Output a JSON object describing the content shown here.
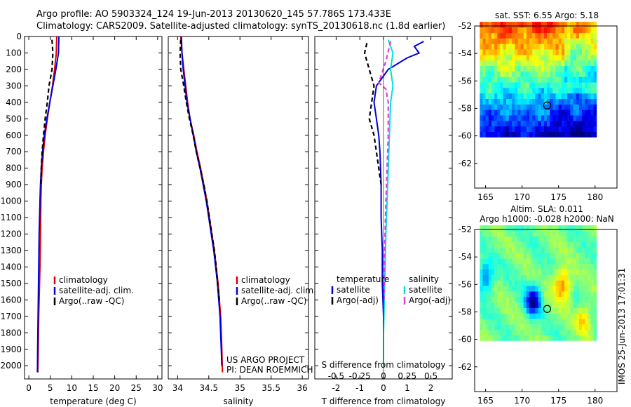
{
  "title_line1": "Argo profile: AO 5903324_124 19-Jun-2013 20130620_145 57.786S 173.433E",
  "title_line2": "Climatology: CARS2009. Satellite-adjusted climatology: synTS_20130618.nc (1.8d earlier)",
  "side_stamp": "IMOS 25-Jun-2013 17:01:31",
  "project_line1": "US ARGO PROJECT",
  "project_line2": "PI: DEAN ROEMMICH",
  "colors": {
    "climatology": "#dd0000",
    "satellite": "#0000dd",
    "argo": "#000000",
    "salinity_satellite": "#00e0e0",
    "salinity_argo": "#e040e0"
  },
  "chart_data": [
    {
      "type": "line",
      "id": "temperature-profile",
      "xlabel": "temperature (deg C)",
      "xlim": [
        -1,
        31
      ],
      "xticks": [
        0,
        5,
        10,
        15,
        20,
        25,
        30
      ],
      "ylim": [
        2080,
        0
      ],
      "yticks": [
        0,
        100,
        200,
        300,
        400,
        500,
        600,
        700,
        800,
        900,
        1000,
        1100,
        1200,
        1300,
        1400,
        1500,
        1600,
        1700,
        1800,
        1900,
        2000
      ],
      "legend": [
        "climatology",
        "satellite-adj. clim.",
        "Argo(..raw -QC)"
      ],
      "legend_position": "lower-middle",
      "series": [
        {
          "name": "climatology",
          "color": "#dd0000",
          "dash": false,
          "points": [
            [
              6.5,
              0
            ],
            [
              6.4,
              100
            ],
            [
              6.0,
              200
            ],
            [
              5.5,
              300
            ],
            [
              4.9,
              400
            ],
            [
              4.3,
              500
            ],
            [
              3.8,
              600
            ],
            [
              3.4,
              700
            ],
            [
              3.1,
              800
            ],
            [
              2.9,
              900
            ],
            [
              2.8,
              1000
            ],
            [
              2.75,
              1100
            ],
            [
              2.7,
              1200
            ],
            [
              2.65,
              1300
            ],
            [
              2.6,
              1400
            ],
            [
              2.5,
              1500
            ],
            [
              2.4,
              1600
            ],
            [
              2.3,
              1700
            ],
            [
              2.25,
              1800
            ],
            [
              2.2,
              1900
            ],
            [
              2.1,
              2040
            ]
          ]
        },
        {
          "name": "satellite-adj. clim.",
          "color": "#0000dd",
          "dash": false,
          "points": [
            [
              7.0,
              0
            ],
            [
              6.9,
              100
            ],
            [
              6.3,
              200
            ],
            [
              5.6,
              300
            ],
            [
              4.9,
              400
            ],
            [
              4.2,
              500
            ],
            [
              3.6,
              600
            ],
            [
              3.2,
              700
            ],
            [
              2.9,
              800
            ],
            [
              2.7,
              900
            ],
            [
              2.6,
              1000
            ],
            [
              2.5,
              1100
            ],
            [
              2.4,
              1200
            ],
            [
              2.35,
              1300
            ],
            [
              2.3,
              1400
            ],
            [
              2.25,
              1500
            ],
            [
              2.2,
              1600
            ],
            [
              2.15,
              1700
            ],
            [
              2.1,
              1800
            ],
            [
              2.05,
              1900
            ],
            [
              2.0,
              2040
            ]
          ]
        },
        {
          "name": "Argo(..raw -QC)",
          "color": "#000000",
          "dash": true,
          "points": [
            [
              5.4,
              20
            ],
            [
              5.6,
              100
            ],
            [
              5.4,
              200
            ],
            [
              4.7,
              300
            ],
            [
              4.3,
              400
            ],
            [
              3.8,
              500
            ],
            [
              3.4,
              600
            ],
            [
              3.1,
              700
            ],
            [
              2.9,
              800
            ],
            [
              2.8,
              900
            ]
          ]
        }
      ]
    },
    {
      "type": "line",
      "id": "salinity-profile",
      "xlabel": "salinity",
      "xlim": [
        33.85,
        36.1
      ],
      "xticks": [
        34,
        34.5,
        35,
        35.5,
        36
      ],
      "ylim": [
        2080,
        0
      ],
      "legend": [
        "climatology",
        "satellite-adj. clim.",
        "Argo(..raw -QC)"
      ],
      "legend_position": "lower-middle",
      "series": [
        {
          "name": "climatology",
          "color": "#dd0000",
          "dash": false,
          "points": [
            [
              34.05,
              0
            ],
            [
              34.07,
              100
            ],
            [
              34.1,
              200
            ],
            [
              34.13,
              300
            ],
            [
              34.16,
              400
            ],
            [
              34.2,
              500
            ],
            [
              34.26,
              600
            ],
            [
              34.31,
              700
            ],
            [
              34.37,
              800
            ],
            [
              34.42,
              900
            ],
            [
              34.47,
              1000
            ],
            [
              34.51,
              1100
            ],
            [
              34.55,
              1200
            ],
            [
              34.59,
              1300
            ],
            [
              34.62,
              1400
            ],
            [
              34.65,
              1500
            ],
            [
              34.67,
              1600
            ],
            [
              34.69,
              1700
            ],
            [
              34.7,
              1800
            ],
            [
              34.71,
              1900
            ],
            [
              34.72,
              2040
            ]
          ]
        },
        {
          "name": "satellite-adj. clim.",
          "color": "#0000dd",
          "dash": false,
          "points": [
            [
              34.06,
              0
            ],
            [
              34.07,
              100
            ],
            [
              34.09,
              200
            ],
            [
              34.12,
              300
            ],
            [
              34.15,
              400
            ],
            [
              34.2,
              500
            ],
            [
              34.25,
              600
            ],
            [
              34.3,
              700
            ],
            [
              34.36,
              800
            ],
            [
              34.41,
              900
            ],
            [
              34.46,
              1000
            ],
            [
              34.5,
              1100
            ],
            [
              34.54,
              1200
            ],
            [
              34.58,
              1300
            ],
            [
              34.61,
              1400
            ],
            [
              34.64,
              1500
            ],
            [
              34.66,
              1600
            ],
            [
              34.68,
              1700
            ],
            [
              34.69,
              1800
            ],
            [
              34.7,
              1900
            ],
            [
              34.71,
              2000
            ]
          ]
        },
        {
          "name": "Argo(..raw -QC)",
          "color": "#000000",
          "dash": true,
          "points": [
            [
              34.05,
              20
            ],
            [
              34.04,
              100
            ],
            [
              34.05,
              200
            ],
            [
              34.09,
              280
            ],
            [
              34.14,
              400
            ],
            [
              34.19,
              500
            ],
            [
              34.25,
              600
            ],
            [
              34.3,
              700
            ],
            [
              34.36,
              800
            ],
            [
              34.42,
              900
            ],
            [
              34.47,
              1000
            ],
            [
              34.51,
              1100
            ],
            [
              34.55,
              1200
            ],
            [
              34.59,
              1300
            ],
            [
              34.62,
              1400
            ],
            [
              34.64,
              1500
            ],
            [
              34.67,
              1600
            ]
          ]
        }
      ]
    },
    {
      "type": "line",
      "id": "difference-profile",
      "xlabel": "T difference from climatology",
      "xlabel_top": "S difference from climatology",
      "xlim": [
        -2.9,
        2.9
      ],
      "xticks": [
        -2,
        -1,
        0,
        1,
        2
      ],
      "xticks_salinity": [
        -0.5,
        -0.25,
        0,
        0.25,
        0.5
      ],
      "xtick_salinity_labels": [
        "-0.5",
        "-0.25",
        "0",
        "0.25",
        "0.5"
      ],
      "ylim": [
        2080,
        0
      ],
      "legend_temperature_title": "temperature",
      "legend_temperature": [
        "satellite",
        "Argo(-adj)"
      ],
      "legend_salinity_title": "salinity",
      "legend_salinity": [
        "satellite",
        "Argo(-adj)"
      ],
      "series": [
        {
          "name": "satellite",
          "group": "temperature",
          "color": "#0000dd",
          "dash": false,
          "points": [
            [
              1.7,
              30
            ],
            [
              1.3,
              60
            ],
            [
              1.5,
              100
            ],
            [
              1.0,
              130
            ],
            [
              0.2,
              200
            ],
            [
              -0.1,
              260
            ],
            [
              -0.3,
              300
            ],
            [
              -0.4,
              400
            ],
            [
              -0.3,
              500
            ],
            [
              -0.2,
              600
            ],
            [
              -0.15,
              700
            ],
            [
              -0.1,
              900
            ],
            [
              -0.1,
              1100
            ],
            [
              -0.05,
              1300
            ],
            [
              -0.05,
              1500
            ],
            [
              0,
              1700
            ],
            [
              0,
              2000
            ]
          ]
        },
        {
          "name": "Argo(-adj)",
          "group": "temperature",
          "color": "#000000",
          "dash": true,
          "points": [
            [
              -0.7,
              40
            ],
            [
              -0.8,
              100
            ],
            [
              -0.6,
              200
            ],
            [
              -0.4,
              300
            ],
            [
              -0.5,
              400
            ],
            [
              -0.6,
              500
            ],
            [
              -0.4,
              600
            ],
            [
              -0.2,
              800
            ],
            [
              -0.1,
              900
            ]
          ]
        },
        {
          "name": "satellite",
          "group": "salinity",
          "color": "#00e0e0",
          "dash": false,
          "points": [
            [
              0.2,
              20
            ],
            [
              0.4,
              100
            ],
            [
              0.3,
              200
            ],
            [
              0.4,
              300
            ],
            [
              0.3,
              400
            ],
            [
              0.25,
              600
            ],
            [
              0.2,
              800
            ],
            [
              0.15,
              1000
            ],
            [
              0.1,
              1200
            ],
            [
              0.05,
              1500
            ],
            [
              0,
              1800
            ],
            [
              0,
              2000
            ]
          ]
        },
        {
          "name": "Argo(-adj)",
          "group": "salinity",
          "color": "#e040e0",
          "dash": true,
          "points": [
            [
              0.3,
              30
            ],
            [
              0.1,
              150
            ],
            [
              -0.2,
              280
            ],
            [
              0.1,
              320
            ],
            [
              0.2,
              400
            ],
            [
              0.2,
              600
            ],
            [
              0.15,
              800
            ],
            [
              0.1,
              1000
            ],
            [
              0.05,
              1300
            ],
            [
              0.02,
              1600
            ]
          ]
        }
      ]
    },
    {
      "type": "heatmap",
      "id": "sst-map",
      "title": "sat. SST: 6.55  Argo: 5.18",
      "xlim": [
        163.5,
        183
      ],
      "ylim": [
        -63.8,
        -52
      ],
      "xticks": [
        165,
        170,
        175,
        180
      ],
      "yticks": [
        -52,
        -54,
        -56,
        -58,
        -60,
        -62
      ],
      "data_extent": {
        "lon": [
          164.2,
          180
        ],
        "lat": [
          -60.1,
          -52
        ]
      },
      "float_position": {
        "lon": 173.433,
        "lat": -57.786
      },
      "palette": "jet",
      "pattern": "warm-north"
    },
    {
      "type": "heatmap",
      "id": "sla-map",
      "title_line1": "Altim. SLA: 0.011",
      "title_line2": "Argo h1000: -0.028  h2000: NaN",
      "xlim": [
        163.5,
        183
      ],
      "ylim": [
        -63.8,
        -52
      ],
      "xticks": [
        165,
        170,
        175,
        180
      ],
      "yticks": [
        -52,
        -54,
        -56,
        -58,
        -60,
        -62
      ],
      "data_extent": {
        "lon": [
          164.2,
          180
        ],
        "lat": [
          -60.1,
          -52
        ]
      },
      "float_position": {
        "lon": 173.433,
        "lat": -57.786
      },
      "palette": "jet",
      "pattern": "sla-eddies"
    }
  ]
}
